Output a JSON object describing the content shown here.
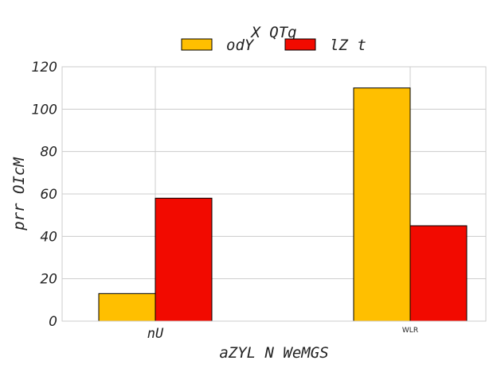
{
  "chart_data": {
    "type": "bar",
    "title": "X QTq",
    "xlabel": "aZYL N WeMGS",
    "ylabel": "prr OIcM",
    "categories": [
      "nU",
      "WLR"
    ],
    "series": [
      {
        "name": "odY",
        "values": [
          13,
          110
        ],
        "color": "#ffbf00"
      },
      {
        "name": "lZ t",
        "values": [
          58,
          45
        ],
        "color": "#f20a00"
      }
    ],
    "ylim": [
      0,
      120
    ],
    "yticks": [
      0,
      20,
      40,
      60,
      80,
      100,
      120
    ],
    "grid": true,
    "legend": "top-center"
  }
}
